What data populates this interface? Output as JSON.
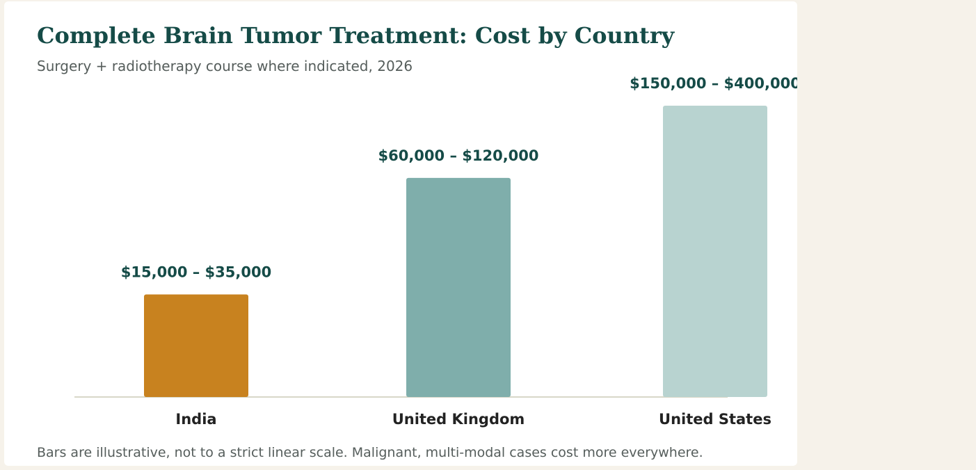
{
  "chart_data": {
    "type": "bar",
    "title": "Complete Brain Tumor Treatment: Cost by Country",
    "subtitle": "Surgery + radiotherapy course where indicated, 2026",
    "categories": [
      "India",
      "United Kingdom",
      "United States"
    ],
    "value_labels": [
      "$15,000 – $35,000",
      "$60,000 – $120,000",
      "$150,000 – $400,000"
    ],
    "ranges": [
      [
        15000,
        35000
      ],
      [
        60000,
        120000
      ],
      [
        150000,
        400000
      ]
    ],
    "relative_heights": [
      0.352,
      0.752,
      1.0
    ],
    "colors": [
      "#c8821f",
      "#7faeab",
      "#b8d3d0"
    ],
    "axis": {
      "show_y_axis": false,
      "grid": false,
      "baseline_color": "#d8d7c8"
    },
    "note": "Bars are illustrative, not to a strict linear scale. Malignant, multi-modal cases cost more everywhere."
  }
}
